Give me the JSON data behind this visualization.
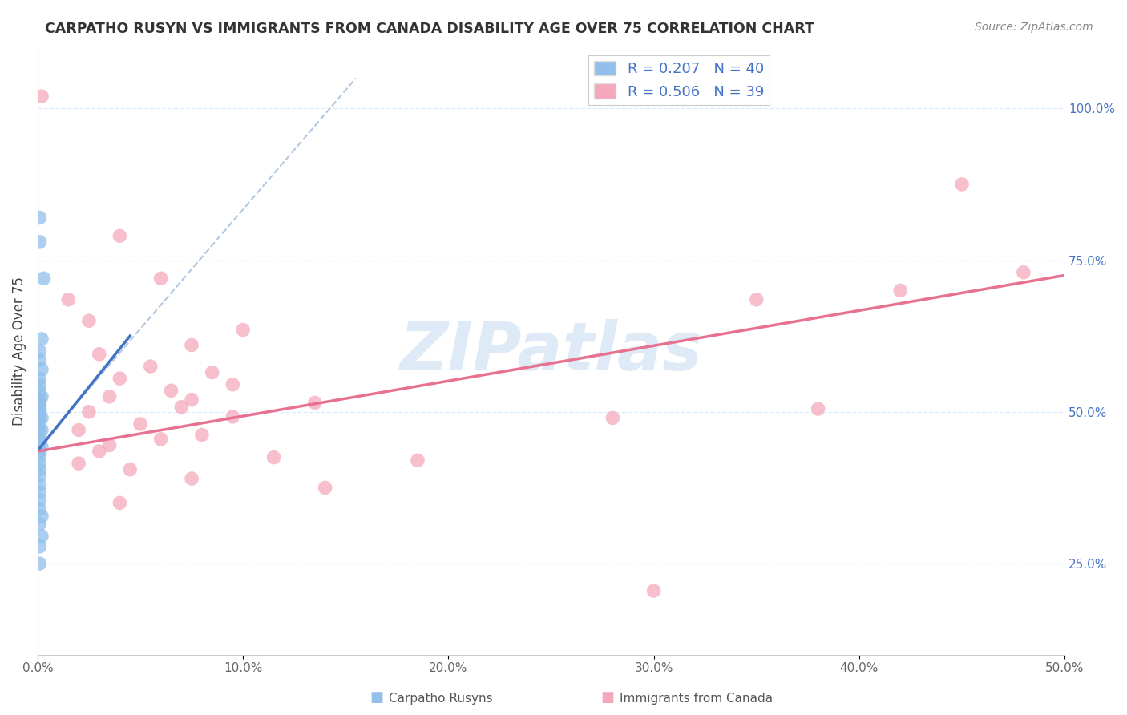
{
  "title": "CARPATHO RUSYN VS IMMIGRANTS FROM CANADA DISABILITY AGE OVER 75 CORRELATION CHART",
  "source": "Source: ZipAtlas.com",
  "ylabel": "Disability Age Over 75",
  "xmin": 0.0,
  "xmax": 0.5,
  "ymin": 0.1,
  "ymax": 1.1,
  "legend_blue_R": "R = 0.207",
  "legend_blue_N": "N = 40",
  "legend_pink_R": "R = 0.506",
  "legend_pink_N": "N = 39",
  "blue_color": "#92C0EA",
  "pink_color": "#F5A8BC",
  "blue_line_color": "#4472C4",
  "pink_line_color": "#E87090",
  "dashed_line_color": "#B0C8E0",
  "watermark_text": "ZIPatlas",
  "watermark_color": "#C8DCF0",
  "background_color": "#FFFFFF",
  "grid_color": "#DDEEFF",
  "right_ytick_vals": [
    0.25,
    0.5,
    0.75,
    1.0
  ],
  "right_yticklabels": [
    "25.0%",
    "50.0%",
    "75.0%",
    "100.0%"
  ],
  "xtick_vals": [
    0.0,
    0.1,
    0.2,
    0.3,
    0.4,
    0.5
  ],
  "xtick_labels": [
    "0.0%",
    "10.0%",
    "20.0%",
    "30.0%",
    "40.0%",
    "50.0%"
  ],
  "blue_dots": [
    [
      0.001,
      0.82
    ],
    [
      0.001,
      0.78
    ],
    [
      0.003,
      0.72
    ],
    [
      0.002,
      0.62
    ],
    [
      0.001,
      0.6
    ],
    [
      0.001,
      0.585
    ],
    [
      0.002,
      0.57
    ],
    [
      0.001,
      0.555
    ],
    [
      0.001,
      0.545
    ],
    [
      0.001,
      0.535
    ],
    [
      0.002,
      0.525
    ],
    [
      0.001,
      0.52
    ],
    [
      0.001,
      0.515
    ],
    [
      0.001,
      0.51
    ],
    [
      0.001,
      0.505
    ],
    [
      0.001,
      0.5
    ],
    [
      0.001,
      0.495
    ],
    [
      0.002,
      0.49
    ],
    [
      0.001,
      0.485
    ],
    [
      0.001,
      0.48
    ],
    [
      0.001,
      0.475
    ],
    [
      0.002,
      0.47
    ],
    [
      0.001,
      0.462
    ],
    [
      0.001,
      0.455
    ],
    [
      0.001,
      0.448
    ],
    [
      0.002,
      0.442
    ],
    [
      0.001,
      0.435
    ],
    [
      0.001,
      0.428
    ],
    [
      0.001,
      0.415
    ],
    [
      0.001,
      0.405
    ],
    [
      0.001,
      0.395
    ],
    [
      0.001,
      0.38
    ],
    [
      0.001,
      0.368
    ],
    [
      0.001,
      0.355
    ],
    [
      0.001,
      0.34
    ],
    [
      0.002,
      0.328
    ],
    [
      0.001,
      0.315
    ],
    [
      0.002,
      0.295
    ],
    [
      0.001,
      0.278
    ],
    [
      0.001,
      0.25
    ]
  ],
  "pink_dots": [
    [
      0.002,
      1.02
    ],
    [
      0.04,
      0.79
    ],
    [
      0.06,
      0.72
    ],
    [
      0.015,
      0.685
    ],
    [
      0.025,
      0.65
    ],
    [
      0.1,
      0.635
    ],
    [
      0.075,
      0.61
    ],
    [
      0.03,
      0.595
    ],
    [
      0.055,
      0.575
    ],
    [
      0.085,
      0.565
    ],
    [
      0.04,
      0.555
    ],
    [
      0.095,
      0.545
    ],
    [
      0.065,
      0.535
    ],
    [
      0.035,
      0.525
    ],
    [
      0.075,
      0.52
    ],
    [
      0.135,
      0.515
    ],
    [
      0.07,
      0.508
    ],
    [
      0.025,
      0.5
    ],
    [
      0.095,
      0.492
    ],
    [
      0.05,
      0.48
    ],
    [
      0.02,
      0.47
    ],
    [
      0.08,
      0.462
    ],
    [
      0.06,
      0.455
    ],
    [
      0.035,
      0.445
    ],
    [
      0.03,
      0.435
    ],
    [
      0.115,
      0.425
    ],
    [
      0.02,
      0.415
    ],
    [
      0.045,
      0.405
    ],
    [
      0.185,
      0.42
    ],
    [
      0.075,
      0.39
    ],
    [
      0.14,
      0.375
    ],
    [
      0.04,
      0.35
    ],
    [
      0.28,
      0.49
    ],
    [
      0.35,
      0.685
    ],
    [
      0.3,
      0.205
    ],
    [
      0.38,
      0.505
    ],
    [
      0.45,
      0.875
    ],
    [
      0.42,
      0.7
    ],
    [
      0.48,
      0.73
    ]
  ],
  "blue_line_x": [
    0.001,
    0.045
  ],
  "blue_line_y": [
    0.44,
    0.625
  ],
  "pink_line_x": [
    0.0,
    0.5
  ],
  "pink_line_y": [
    0.435,
    0.725
  ],
  "dash_line_x": [
    0.0,
    0.155
  ],
  "dash_line_y": [
    0.44,
    1.05
  ]
}
